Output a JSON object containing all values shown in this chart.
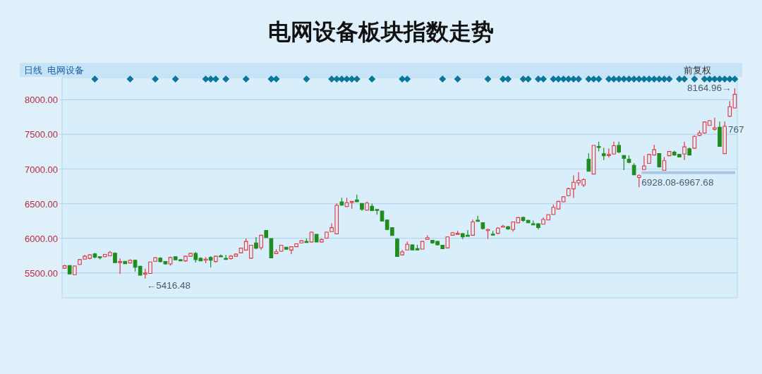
{
  "chart_data": {
    "type": "candlestick",
    "title": "电网设备板块指数走势",
    "categories": [
      null,
      null,
      null,
      null,
      null,
      null,
      null,
      null,
      null,
      null,
      null,
      null,
      null,
      null,
      null,
      null,
      null,
      null,
      null,
      null,
      null,
      null,
      null,
      null,
      null,
      null,
      null,
      null,
      null,
      null,
      null,
      null,
      null,
      null,
      null,
      null,
      null,
      null,
      null,
      null,
      null,
      null,
      null,
      null,
      null,
      null,
      null,
      null,
      null,
      null,
      null,
      null,
      null,
      null,
      null,
      null,
      null,
      null,
      null,
      null,
      null,
      null,
      null,
      null,
      null,
      null,
      null,
      null,
      null,
      null,
      null,
      null,
      null,
      null,
      null,
      null,
      null,
      null,
      null,
      null,
      null,
      null,
      null,
      null,
      null,
      null,
      null,
      null,
      null,
      null,
      null,
      null,
      null,
      null,
      null,
      null,
      null,
      null,
      null,
      null,
      null,
      null,
      null,
      null,
      null,
      null,
      null,
      null,
      null,
      null,
      null,
      null,
      null,
      null,
      null,
      null,
      null,
      null,
      null,
      null,
      null,
      null,
      null,
      null,
      null,
      null,
      null,
      null,
      null,
      null,
      null,
      null,
      null,
      null
    ],
    "ohlc": [
      [
        5567,
        5616,
        5560,
        5602
      ],
      [
        5605,
        5610,
        5480,
        5485
      ],
      [
        5474,
        5605,
        5470,
        5598
      ],
      [
        5622,
        5700,
        5615,
        5692
      ],
      [
        5698,
        5760,
        5690,
        5740
      ],
      [
        5709,
        5767,
        5695,
        5760
      ],
      [
        5774,
        5790,
        5709,
        5726
      ],
      [
        5733,
        5736,
        5695,
        5719
      ],
      [
        5733,
        5774,
        5726,
        5767
      ],
      [
        5747,
        5815,
        5740,
        5795
      ],
      [
        5785,
        5795,
        5647,
        5647
      ],
      [
        5650,
        5709,
        5485,
        5664
      ],
      [
        5667,
        5670,
        5630,
        5633
      ],
      [
        5643,
        5695,
        5636,
        5681
      ],
      [
        5681,
        5690,
        5519,
        5581
      ],
      [
        5595,
        5600,
        5460,
        5467
      ],
      [
        5485,
        5560,
        5416.48,
        5498
      ],
      [
        5491,
        5660,
        5485,
        5657
      ],
      [
        5667,
        5730,
        5660,
        5719
      ],
      [
        5712,
        5726,
        5650,
        5664
      ],
      [
        5664,
        5670,
        5620,
        5629
      ],
      [
        5629,
        5733,
        5605,
        5722
      ],
      [
        5733,
        5740,
        5688,
        5688
      ],
      [
        5691,
        5700,
        5670,
        5674
      ],
      [
        5674,
        5750,
        5660,
        5740
      ],
      [
        5740,
        5790,
        5735,
        5781
      ],
      [
        5781,
        5800,
        5650,
        5691
      ],
      [
        5709,
        5726,
        5670,
        5674
      ],
      [
        5691,
        5726,
        5640,
        5698
      ],
      [
        5722,
        5740,
        5578,
        5684
      ],
      [
        5664,
        5750,
        5650,
        5740
      ],
      [
        5747,
        5767,
        5736,
        5736
      ],
      [
        5709,
        5760,
        5698,
        5698
      ],
      [
        5705,
        5760,
        5690,
        5743
      ],
      [
        5740,
        5781,
        5735,
        5771
      ],
      [
        5788,
        5860,
        5785,
        5857
      ],
      [
        5829,
        5996,
        5820,
        5954
      ],
      [
        5712,
        5899,
        5705,
        5899
      ],
      [
        5933,
        6016,
        5840,
        5857
      ],
      [
        5864,
        6050,
        5830,
        6043
      ],
      [
        6112,
        6112,
        6009,
        6009
      ],
      [
        5995,
        5995,
        5716,
        5716
      ],
      [
        5778,
        5840,
        5775,
        5805
      ],
      [
        5812,
        5905,
        5805,
        5899
      ],
      [
        5871,
        5875,
        5836,
        5840
      ],
      [
        5829,
        5885,
        5770,
        5878
      ],
      [
        5878,
        5925,
        5875,
        5919
      ],
      [
        5933,
        5975,
        5930,
        5964
      ],
      [
        5954,
        5995,
        5946,
        5946
      ],
      [
        5946,
        6095,
        5940,
        6088
      ],
      [
        6057,
        6057,
        5946,
        5946
      ],
      [
        5946,
        5995,
        5940,
        5981
      ],
      [
        6002,
        6095,
        6000,
        6088
      ],
      [
        6095,
        6215,
        6090,
        6153
      ],
      [
        6064,
        6502,
        6060,
        6475
      ],
      [
        6526,
        6585,
        6470,
        6478
      ],
      [
        6457,
        6585,
        6450,
        6513
      ],
      [
        6520,
        6533,
        6426,
        6533
      ],
      [
        6554,
        6630,
        6526,
        6526
      ],
      [
        6502,
        6502,
        6395,
        6416
      ],
      [
        6406,
        6530,
        6395,
        6509
      ],
      [
        6461,
        6500,
        6395,
        6399
      ],
      [
        6416,
        6416,
        6340,
        6406
      ],
      [
        6392,
        6395,
        6240,
        6250
      ],
      [
        6264,
        6270,
        6115,
        6126
      ],
      [
        6153,
        6153,
        6040,
        6040
      ],
      [
        5988,
        6000,
        5736,
        5736
      ],
      [
        5760,
        5830,
        5750,
        5802
      ],
      [
        5830,
        5954,
        5825,
        5912
      ],
      [
        5905,
        5910,
        5830,
        5830
      ],
      [
        5850,
        5905,
        5830,
        5830
      ],
      [
        5843,
        5960,
        5840,
        5954
      ],
      [
        5985,
        6043,
        5980,
        6009
      ],
      [
        5971,
        5975,
        5919,
        5933
      ],
      [
        5954,
        5960,
        5895,
        5905
      ],
      [
        5898,
        5905,
        5845,
        5850
      ],
      [
        5860,
        6030,
        5850,
        6019
      ],
      [
        6043,
        6090,
        6040,
        6081
      ],
      [
        6057,
        6105,
        6050,
        6071
      ],
      [
        6067,
        6075,
        5985,
        6019
      ],
      [
        6043,
        6119,
        6029,
        6029
      ],
      [
        6043,
        6270,
        6040,
        6236
      ],
      [
        6260,
        6326,
        6250,
        6250
      ],
      [
        6226,
        6230,
        6126,
        6140
      ],
      [
        6112,
        6140,
        5988,
        6126
      ],
      [
        6060,
        6105,
        6050,
        6050
      ],
      [
        6071,
        6160,
        6060,
        6147
      ],
      [
        6161,
        6195,
        6161,
        6174
      ],
      [
        6167,
        6180,
        6120,
        6133
      ],
      [
        6126,
        6240,
        6095,
        6236
      ],
      [
        6223,
        6306,
        6215,
        6298
      ],
      [
        6302,
        6312,
        6236,
        6257
      ],
      [
        6257,
        6265,
        6220,
        6223
      ],
      [
        6209,
        6257,
        6192,
        6192
      ],
      [
        6209,
        6215,
        6126,
        6154
      ],
      [
        6202,
        6300,
        6200,
        6271
      ],
      [
        6264,
        6345,
        6260,
        6340
      ],
      [
        6343,
        6485,
        6340,
        6447
      ],
      [
        6423,
        6540,
        6420,
        6533
      ],
      [
        6526,
        6605,
        6520,
        6599
      ],
      [
        6616,
        6730,
        6605,
        6716
      ],
      [
        6713,
        6909,
        6582,
        6809
      ],
      [
        6802,
        6954,
        6760,
        6837
      ],
      [
        6768,
        6865,
        6740,
        6847
      ],
      [
        7141,
        7227,
        6968,
        6968
      ],
      [
        6927,
        7341,
        6927,
        7341
      ],
      [
        7327,
        7396,
        7255,
        7313
      ],
      [
        7220,
        7306,
        7127,
        7192
      ],
      [
        7199,
        7296,
        7165,
        7210
      ],
      [
        7216,
        7396,
        7210,
        7337
      ],
      [
        7341,
        7396,
        7230,
        7244
      ],
      [
        7196,
        7200,
        6985,
        7154
      ],
      [
        7141,
        7196,
        7085,
        7096
      ],
      [
        7054,
        7085,
        6910,
        6916
      ],
      [
        6878,
        6923,
        6737,
        6906
      ],
      [
        6992,
        7192,
        6985,
        7044
      ],
      [
        7082,
        7220,
        7075,
        7210
      ],
      [
        7203,
        7348,
        7196,
        7279
      ],
      [
        7223,
        7230,
        7020,
        7030
      ],
      [
        6982,
        7175,
        6982,
        7120
      ],
      [
        7192,
        7260,
        7185,
        7254
      ],
      [
        7244,
        7265,
        7190,
        7203
      ],
      [
        7210,
        7220,
        7170,
        7175
      ],
      [
        7216,
        7396,
        7130,
        7320
      ],
      [
        7292,
        7310,
        7196,
        7203
      ],
      [
        7299,
        7486,
        7290,
        7472
      ],
      [
        7486,
        7555,
        7475,
        7520
      ],
      [
        7520,
        7686,
        7510,
        7679
      ],
      [
        7630,
        7705,
        7625,
        7699
      ],
      [
        7575,
        7741,
        7555,
        7596
      ],
      [
        7603,
        7686,
        7320,
        7327
      ],
      [
        7223,
        7686,
        7220,
        7617
      ],
      [
        7762,
        7980,
        7750,
        7900
      ],
      [
        7882,
        8164.96,
        7875,
        8079
      ]
    ],
    "colors": [
      "#e8343c",
      "#1e8c1e",
      "#e8343c",
      "#e8343c",
      "#e8343c",
      "#e8343c",
      "#1e8c1e",
      "#1e8c1e",
      "#e8343c",
      "#e8343c",
      "#1e8c1e",
      "#e8343c",
      "#1e8c1e",
      "#e8343c",
      "#1e8c1e",
      "#1e8c1e",
      "#e8343c",
      "#e8343c",
      "#e8343c",
      "#1e8c1e",
      "#1e8c1e",
      "#e8343c",
      "#1e8c1e",
      "#1e8c1e",
      "#e8343c",
      "#e8343c",
      "#1e8c1e",
      "#1e8c1e",
      "#e8343c",
      "#1e8c1e",
      "#e8343c",
      "#1e8c1e",
      "#1e8c1e",
      "#e8343c",
      "#e8343c",
      "#e8343c",
      "#e8343c",
      "#e8343c",
      "#1e8c1e",
      "#e8343c",
      "#1e8c1e",
      "#1e8c1e",
      "#e8343c",
      "#e8343c",
      "#1e8c1e",
      "#e8343c",
      "#e8343c",
      "#e8343c",
      "#1e8c1e",
      "#e8343c",
      "#1e8c1e",
      "#e8343c",
      "#e8343c",
      "#e8343c",
      "#e8343c",
      "#1e8c1e",
      "#e8343c",
      "#e8343c",
      "#1e8c1e",
      "#1e8c1e",
      "#e8343c",
      "#1e8c1e",
      "#1e8c1e",
      "#1e8c1e",
      "#1e8c1e",
      "#1e8c1e",
      "#1e8c1e",
      "#e8343c",
      "#e8343c",
      "#1e8c1e",
      "#1e8c1e",
      "#e8343c",
      "#e8343c",
      "#1e8c1e",
      "#1e8c1e",
      "#1e8c1e",
      "#e8343c",
      "#e8343c",
      "#e8343c",
      "#1e8c1e",
      "#1e8c1e",
      "#e8343c",
      "#1e8c1e",
      "#1e8c1e",
      "#e8343c",
      "#1e8c1e",
      "#e8343c",
      "#e8343c",
      "#1e8c1e",
      "#e8343c",
      "#e8343c",
      "#1e8c1e",
      "#1e8c1e",
      "#1e8c1e",
      "#1e8c1e",
      "#e8343c",
      "#e8343c",
      "#e8343c",
      "#e8343c",
      "#e8343c",
      "#e8343c",
      "#e8343c",
      "#e8343c",
      "#e8343c",
      "#1e8c1e",
      "#e8343c",
      "#1e8c1e",
      "#1e8c1e",
      "#e8343c",
      "#e8343c",
      "#1e8c1e",
      "#1e8c1e",
      "#1e8c1e",
      "#1e8c1e",
      "#e8343c",
      "#e8343c",
      "#e8343c",
      "#e8343c",
      "#1e8c1e",
      "#e8343c",
      "#e8343c",
      "#1e8c1e",
      "#1e8c1e",
      "#e8343c",
      "#1e8c1e",
      "#e8343c",
      "#e8343c",
      "#e8343c",
      "#e8343c",
      "#e8343c",
      "#1e8c1e",
      "#e8343c",
      "#e8343c",
      "#e8343c"
    ],
    "series": [
      {
        "type": "scatter",
        "color": "#0b7799",
        "marker": "diamond",
        "values": [
          null,
          null,
          null,
          null,
          null,
          null,
          8300,
          null,
          null,
          null,
          null,
          null,
          null,
          8300,
          null,
          null,
          null,
          null,
          8300,
          null,
          null,
          null,
          8300,
          null,
          null,
          null,
          null,
          null,
          8300,
          8300,
          8300,
          null,
          8300,
          null,
          null,
          null,
          8300,
          null,
          null,
          null,
          null,
          8300,
          8300,
          null,
          null,
          null,
          null,
          null,
          8300,
          null,
          null,
          null,
          null,
          8300,
          8300,
          8300,
          8300,
          8300,
          8300,
          null,
          null,
          8300,
          null,
          null,
          null,
          null,
          null,
          8300,
          8300,
          null,
          null,
          null,
          null,
          null,
          null,
          8300,
          null,
          null,
          8300,
          null,
          null,
          null,
          null,
          null,
          8300,
          null,
          null,
          8300,
          8300,
          null,
          null,
          8300,
          8300,
          null,
          8300,
          8300,
          null,
          8300,
          8300,
          8300,
          8300,
          8300,
          8300,
          null,
          8300,
          8300,
          8300,
          null,
          8300,
          8300,
          8300,
          8300,
          8300,
          8300,
          8300,
          8300,
          8300,
          8300,
          8300,
          8300,
          8300,
          null,
          8300,
          8300,
          null,
          8300,
          null,
          8300,
          8300,
          8300,
          8300,
          8300,
          8300,
          8300
        ]
      }
    ],
    "ylim": [
      5140,
      8320
    ],
    "yticks": [
      {
        "value": 5500,
        "label": "5500.00"
      },
      {
        "value": 6000,
        "label": "6000.00"
      },
      {
        "value": 6500,
        "label": "6500.00"
      },
      {
        "value": 7000,
        "label": "7000.00"
      },
      {
        "value": 7500,
        "label": "7500.00"
      },
      {
        "value": 8000,
        "label": "8000.00"
      }
    ],
    "grid": "y",
    "bands": [
      {
        "axis": "y",
        "from": 6928.08,
        "to": 6967.68,
        "label": "6928.08-6967.68",
        "color": "#a9c6e4"
      }
    ],
    "annotations": [
      "日线",
      "电网设备",
      "前复权",
      "←5416.48",
      "8164.96→",
      "767"
    ]
  }
}
